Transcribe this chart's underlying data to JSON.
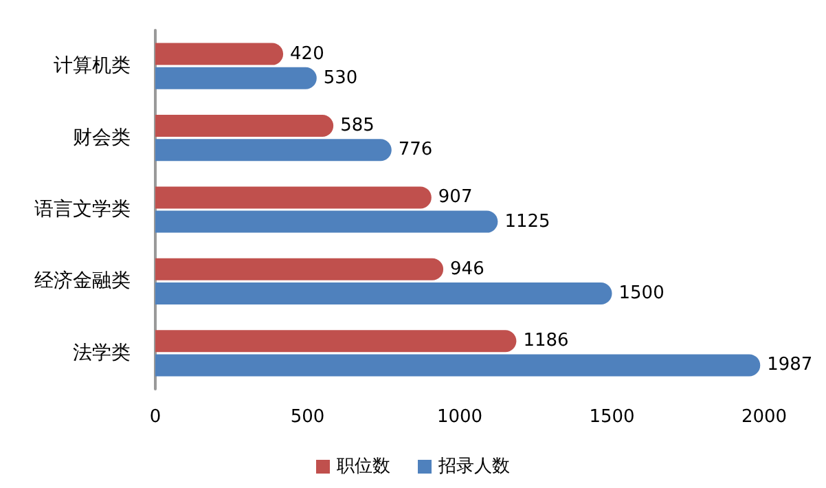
{
  "chart_data": {
    "type": "bar",
    "orientation": "horizontal",
    "categories": [
      "计算机类",
      "财会类",
      "语言文学类",
      "经济金融类",
      "法学类"
    ],
    "series": [
      {
        "name": "职位数",
        "color": "#c0504d",
        "values": [
          420,
          585,
          907,
          946,
          1186
        ]
      },
      {
        "name": "招录人数",
        "color": "#4f81bd",
        "values": [
          530,
          776,
          1125,
          1500,
          1987
        ]
      }
    ],
    "xlim": [
      0,
      2000
    ],
    "xticks": [
      0,
      500,
      1000,
      1500,
      2000
    ],
    "grid": false,
    "legend": "bottom",
    "data_labels": true
  }
}
